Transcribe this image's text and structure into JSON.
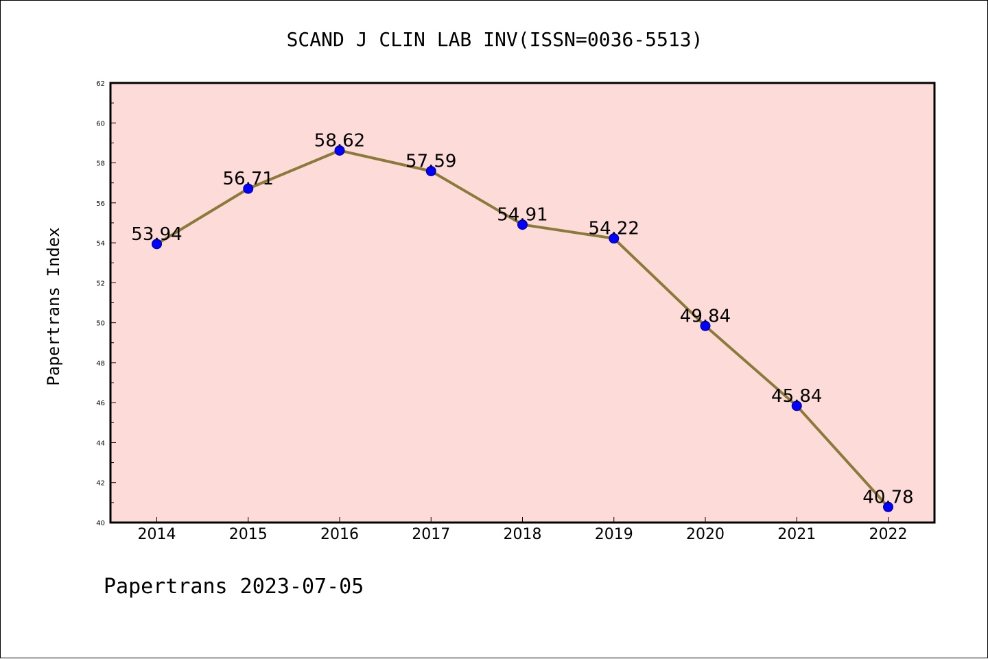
{
  "chart_data": {
    "type": "line",
    "title": "SCAND J CLIN LAB INV(ISSN=0036-5513)",
    "ylabel": "Papertrans Index",
    "xlabel": "",
    "categories": [
      "2014",
      "2015",
      "2016",
      "2017",
      "2018",
      "2019",
      "2020",
      "2021",
      "2022"
    ],
    "series": [
      {
        "values": [
          53.94,
          56.71,
          58.62,
          57.59,
          54.91,
          54.22,
          49.84,
          45.84,
          40.78
        ],
        "labels": [
          "53.94",
          "56.71",
          "58.62",
          "57.59",
          "54.91",
          "54.22",
          "49.84",
          "45.84",
          "40.78"
        ]
      }
    ],
    "ylim": [
      40,
      62
    ],
    "yticks": [
      "40",
      "42",
      "44",
      "46",
      "48",
      "50",
      "52",
      "54",
      "56",
      "58",
      "60",
      "62"
    ],
    "grid": false,
    "colors": {
      "plot_background": "#fddbd8",
      "line": "#8b7a3a",
      "marker": "#0000ff",
      "marker_edge": "#000080"
    }
  },
  "footer": {
    "text": "Papertrans 2023-07-05"
  }
}
